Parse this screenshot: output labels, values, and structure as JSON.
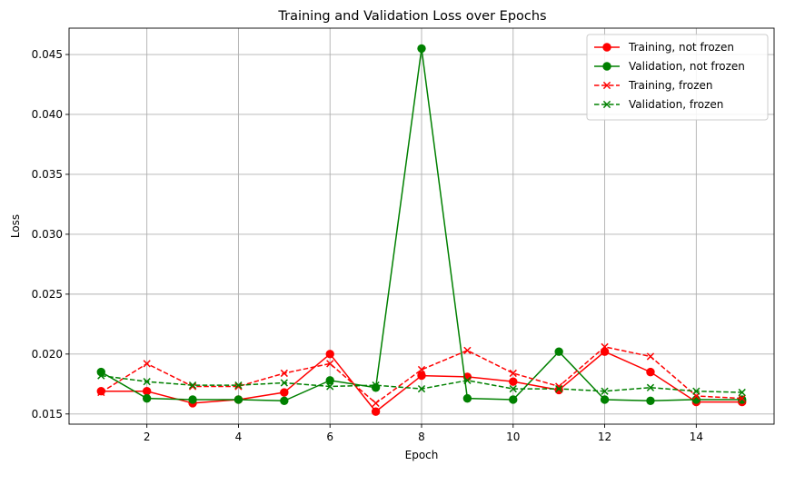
{
  "chart_data": {
    "type": "line",
    "title": "Training and Validation Loss over Epochs",
    "xlabel": "Epoch",
    "ylabel": "Loss",
    "xlim": [
      0.3,
      15.7
    ],
    "ylim": [
      0.01415,
      0.0472
    ],
    "xticks": [
      2,
      4,
      6,
      8,
      10,
      12,
      14
    ],
    "yticks": [
      0.015,
      0.02,
      0.025,
      0.03,
      0.035,
      0.04,
      0.045
    ],
    "ytick_labels": [
      "0.015",
      "0.020",
      "0.025",
      "0.030",
      "0.035",
      "0.040",
      "0.045"
    ],
    "grid": true,
    "legend_position": "top-right",
    "x": [
      1,
      2,
      3,
      4,
      5,
      6,
      7,
      8,
      9,
      10,
      11,
      12,
      13,
      14,
      15
    ],
    "series": [
      {
        "name": "Training, not frozen",
        "color": "#ff0000",
        "linestyle": "solid",
        "marker": "circle",
        "values": [
          0.0169,
          0.0169,
          0.0159,
          0.0162,
          0.0168,
          0.02,
          0.0152,
          0.0182,
          0.0181,
          0.0177,
          0.017,
          0.0202,
          0.0185,
          0.016,
          0.016
        ]
      },
      {
        "name": "Validation, not frozen",
        "color": "#008000",
        "linestyle": "solid",
        "marker": "circle",
        "values": [
          0.0185,
          0.0163,
          0.0162,
          0.0162,
          0.0161,
          0.0178,
          0.0172,
          0.0455,
          0.0163,
          0.0162,
          0.0202,
          0.0162,
          0.0161,
          0.0162,
          0.0162
        ]
      },
      {
        "name": "Training, frozen",
        "color": "#ff0000",
        "linestyle": "dashed",
        "marker": "x",
        "values": [
          0.0168,
          0.0192,
          0.0173,
          0.0173,
          0.0184,
          0.0192,
          0.0159,
          0.0187,
          0.0203,
          0.0184,
          0.0173,
          0.0206,
          0.0198,
          0.0165,
          0.0163
        ]
      },
      {
        "name": "Validation, frozen",
        "color": "#008000",
        "linestyle": "dashed",
        "marker": "x",
        "values": [
          0.0182,
          0.0177,
          0.0174,
          0.0174,
          0.0176,
          0.0173,
          0.0174,
          0.0171,
          0.0178,
          0.0171,
          0.0171,
          0.0169,
          0.0172,
          0.0169,
          0.0168
        ]
      }
    ]
  }
}
